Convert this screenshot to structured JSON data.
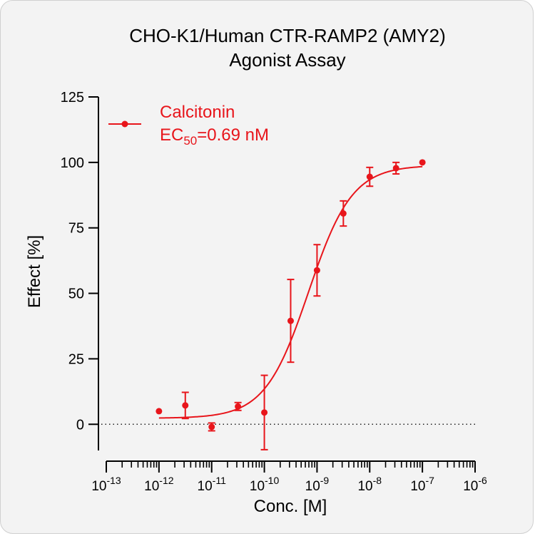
{
  "chart_data": {
    "type": "scatter",
    "title_line1": "CHO-K1/Human CTR-RAMP2 (AMY2)",
    "title_line2": "Agonist Assay",
    "xlabel": "Conc. [M]",
    "ylabel": "Effect  [%]",
    "x_scale": "log",
    "xlim": [
      1e-13,
      1e-06
    ],
    "ylim": [
      -10,
      125
    ],
    "x_tick_exponents": [
      "-13",
      "-12",
      "-11",
      "-10",
      "-9",
      "-8",
      "-7",
      "-6"
    ],
    "y_ticks": [
      0,
      25,
      50,
      75,
      100,
      125
    ],
    "reference_line": 0,
    "grid": false,
    "legend_position": "top-left",
    "series": [
      {
        "name": "Calcitonin",
        "ec50_prefix": "EC",
        "ec50_subscript": "50",
        "ec50_value": "=0.69 nM",
        "color": "#e8151b",
        "x": [
          1e-12,
          3.16e-12,
          1e-11,
          3.16e-11,
          1e-10,
          3.16e-10,
          1e-09,
          3.16e-09,
          1e-08,
          3.16e-08,
          1e-07
        ],
        "y": [
          5,
          7.2,
          -1,
          6.8,
          4.5,
          39.5,
          58.8,
          80.5,
          94.5,
          97.8,
          100
        ],
        "err": [
          0,
          5,
          1.5,
          1.5,
          14.2,
          15.8,
          9.8,
          4.8,
          3.6,
          2.2,
          0
        ],
        "fit": {
          "bottom": 2.3,
          "top": 98.9,
          "logEC50": -9.16,
          "hill": 1.05
        }
      }
    ]
  }
}
